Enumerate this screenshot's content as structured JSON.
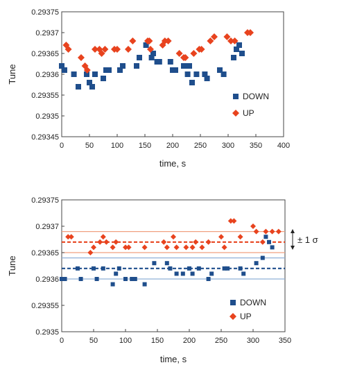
{
  "chart_data": [
    {
      "type": "scatter",
      "xlabel": "time, s",
      "ylabel": "Tune",
      "xlim": [
        0,
        400
      ],
      "ylim": [
        0.29345,
        0.29375
      ],
      "xticks": [
        "0",
        "50",
        "100",
        "150",
        "200",
        "250",
        "300",
        "350",
        "400"
      ],
      "yticks": [
        "0.29345",
        "0.2935",
        "0.29355",
        "0.2936",
        "0.29365",
        "0.2937",
        "0.29375"
      ],
      "legend_position": "bottom-right",
      "series": [
        {
          "name": "DOWN",
          "marker": "square",
          "color": "#1f4e8c",
          "points": [
            [
              0,
              0.29362
            ],
            [
              5,
              0.29361
            ],
            [
              22,
              0.2936
            ],
            [
              30,
              0.29357
            ],
            [
              45,
              0.2936
            ],
            [
              50,
              0.29358
            ],
            [
              55,
              0.29357
            ],
            [
              60,
              0.2936
            ],
            [
              75,
              0.29359
            ],
            [
              80,
              0.29361
            ],
            [
              85,
              0.29361
            ],
            [
              105,
              0.29361
            ],
            [
              110,
              0.29362
            ],
            [
              135,
              0.29362
            ],
            [
              140,
              0.29364
            ],
            [
              152,
              0.29367
            ],
            [
              162,
              0.29364
            ],
            [
              165,
              0.29365
            ],
            [
              172,
              0.29363
            ],
            [
              176,
              0.29363
            ],
            [
              196,
              0.29363
            ],
            [
              200,
              0.29361
            ],
            [
              205,
              0.29361
            ],
            [
              220,
              0.29362
            ],
            [
              227,
              0.2936
            ],
            [
              230,
              0.29362
            ],
            [
              235,
              0.29358
            ],
            [
              243,
              0.2936
            ],
            [
              258,
              0.2936
            ],
            [
              262,
              0.29359
            ],
            [
              285,
              0.29361
            ],
            [
              292,
              0.2936
            ],
            [
              310,
              0.29364
            ],
            [
              315,
              0.29366
            ],
            [
              320,
              0.29367
            ],
            [
              325,
              0.29365
            ]
          ]
        },
        {
          "name": "UP",
          "marker": "diamond",
          "color": "#e8431e",
          "points": [
            [
              8,
              0.29367
            ],
            [
              12,
              0.29366
            ],
            [
              35,
              0.29364
            ],
            [
              42,
              0.29362
            ],
            [
              46,
              0.29361
            ],
            [
              60,
              0.29366
            ],
            [
              68,
              0.29366
            ],
            [
              72,
              0.29365
            ],
            [
              78,
              0.29366
            ],
            [
              95,
              0.29366
            ],
            [
              100,
              0.29366
            ],
            [
              120,
              0.29366
            ],
            [
              128,
              0.29368
            ],
            [
              155,
              0.29368
            ],
            [
              158,
              0.29368
            ],
            [
              160,
              0.29366
            ],
            [
              182,
              0.29367
            ],
            [
              186,
              0.29368
            ],
            [
              192,
              0.29368
            ],
            [
              212,
              0.29365
            ],
            [
              220,
              0.29364
            ],
            [
              223,
              0.29364
            ],
            [
              238,
              0.29365
            ],
            [
              248,
              0.29366
            ],
            [
              252,
              0.29366
            ],
            [
              268,
              0.29368
            ],
            [
              275,
              0.29369
            ],
            [
              298,
              0.29369
            ],
            [
              305,
              0.29368
            ],
            [
              312,
              0.29368
            ],
            [
              335,
              0.2937
            ],
            [
              340,
              0.2937
            ]
          ]
        }
      ]
    },
    {
      "type": "scatter",
      "xlabel": "time, s",
      "ylabel": "Tune",
      "xlim": [
        0,
        350
      ],
      "ylim": [
        0.2935,
        0.29375
      ],
      "xticks": [
        "0",
        "50",
        "100",
        "150",
        "200",
        "250",
        "300",
        "350"
      ],
      "yticks": [
        "0.2935",
        "0.29355",
        "0.2936",
        "0.29365",
        "0.2937",
        "0.29375"
      ],
      "legend_position": "bottom-right",
      "annotation": "± 1 σ",
      "reference_lines": {
        "up": {
          "mean": 0.29367,
          "upper": 0.29369,
          "lower": 0.29365,
          "color": "#f0a080",
          "mean_color": "#e8431e"
        },
        "down": {
          "mean": 0.29362,
          "upper": 0.29364,
          "lower": 0.2936,
          "color": "#8fb0d8",
          "mean_color": "#1f4e8c"
        }
      },
      "series": [
        {
          "name": "DOWN",
          "marker": "square",
          "color": "#1f4e8c",
          "points": [
            [
              0,
              0.2936
            ],
            [
              5,
              0.2936
            ],
            [
              25,
              0.29362
            ],
            [
              30,
              0.2936
            ],
            [
              50,
              0.29362
            ],
            [
              55,
              0.2936
            ],
            [
              65,
              0.29362
            ],
            [
              80,
              0.29359
            ],
            [
              85,
              0.29361
            ],
            [
              90,
              0.29362
            ],
            [
              100,
              0.2936
            ],
            [
              110,
              0.2936
            ],
            [
              115,
              0.2936
            ],
            [
              130,
              0.29359
            ],
            [
              145,
              0.29363
            ],
            [
              165,
              0.29363
            ],
            [
              170,
              0.29362
            ],
            [
              180,
              0.29361
            ],
            [
              190,
              0.29361
            ],
            [
              200,
              0.29362
            ],
            [
              205,
              0.29361
            ],
            [
              215,
              0.29362
            ],
            [
              230,
              0.2936
            ],
            [
              235,
              0.29361
            ],
            [
              255,
              0.29362
            ],
            [
              260,
              0.29362
            ],
            [
              280,
              0.29362
            ],
            [
              285,
              0.29361
            ],
            [
              305,
              0.29363
            ],
            [
              315,
              0.29364
            ],
            [
              320,
              0.29368
            ],
            [
              325,
              0.29367
            ],
            [
              330,
              0.29366
            ]
          ]
        },
        {
          "name": "UP",
          "marker": "diamond",
          "color": "#e8431e",
          "points": [
            [
              10,
              0.29368
            ],
            [
              15,
              0.29368
            ],
            [
              45,
              0.29365
            ],
            [
              50,
              0.29366
            ],
            [
              60,
              0.29367
            ],
            [
              65,
              0.29368
            ],
            [
              70,
              0.29367
            ],
            [
              80,
              0.29366
            ],
            [
              85,
              0.29367
            ],
            [
              100,
              0.29366
            ],
            [
              105,
              0.29366
            ],
            [
              130,
              0.29366
            ],
            [
              160,
              0.29367
            ],
            [
              165,
              0.29366
            ],
            [
              175,
              0.29368
            ],
            [
              180,
              0.29366
            ],
            [
              195,
              0.29366
            ],
            [
              205,
              0.29366
            ],
            [
              210,
              0.29367
            ],
            [
              220,
              0.29366
            ],
            [
              230,
              0.29367
            ],
            [
              250,
              0.29368
            ],
            [
              255,
              0.29366
            ],
            [
              265,
              0.29371
            ],
            [
              270,
              0.29371
            ],
            [
              280,
              0.29368
            ],
            [
              300,
              0.2937
            ],
            [
              305,
              0.29369
            ],
            [
              315,
              0.29367
            ],
            [
              320,
              0.29369
            ],
            [
              330,
              0.29369
            ],
            [
              340,
              0.29369
            ]
          ]
        }
      ]
    }
  ]
}
